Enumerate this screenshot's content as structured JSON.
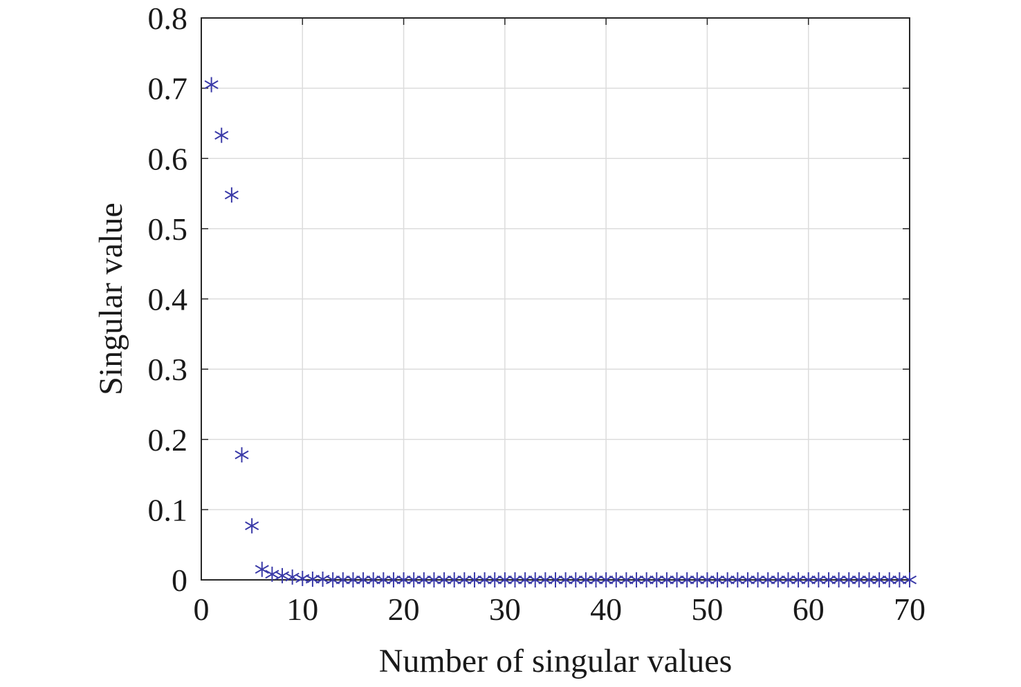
{
  "chart_data": {
    "type": "scatter",
    "title": "",
    "xlabel": "Number of singular values",
    "ylabel": "Singular value",
    "xlim": [
      0,
      70
    ],
    "ylim": [
      0,
      0.8
    ],
    "xticks": [
      0,
      10,
      20,
      30,
      40,
      50,
      60,
      70
    ],
    "xtick_labels": [
      "0",
      "10",
      "20",
      "30",
      "40",
      "50",
      "60",
      "70"
    ],
    "yticks": [
      0,
      0.1,
      0.2,
      0.3,
      0.4,
      0.5,
      0.6,
      0.7,
      0.8
    ],
    "ytick_labels": [
      "0",
      "0.1",
      "0.2",
      "0.3",
      "0.4",
      "0.5",
      "0.6",
      "0.7",
      "0.8"
    ],
    "grid": true,
    "marker": "asterisk",
    "colors": {
      "marker": "#3a3aa8",
      "axis": "#262626",
      "grid": "#dcdcdc"
    },
    "series": [
      {
        "x": [
          1,
          2,
          3,
          4,
          5,
          6,
          7,
          8,
          9,
          10,
          11,
          12,
          13,
          14,
          15,
          16,
          17,
          18,
          19,
          20,
          21,
          22,
          23,
          24,
          25,
          26,
          27,
          28,
          29,
          30,
          31,
          32,
          33,
          34,
          35,
          36,
          37,
          38,
          39,
          40,
          41,
          42,
          43,
          44,
          45,
          46,
          47,
          48,
          49,
          50,
          51,
          52,
          53,
          54,
          55,
          56,
          57,
          58,
          59,
          60,
          61,
          62,
          63,
          64,
          65,
          66,
          67,
          68,
          69,
          70
        ],
        "y": [
          0.705,
          0.633,
          0.548,
          0.178,
          0.077,
          0.015,
          0.008,
          0.006,
          0.004,
          0.002,
          0.001,
          0.001,
          0,
          0,
          0,
          0,
          0,
          0,
          0,
          0,
          0,
          0,
          0,
          0,
          0,
          0,
          0,
          0,
          0,
          0,
          0,
          0,
          0,
          0,
          0,
          0,
          0,
          0,
          0,
          0,
          0,
          0,
          0,
          0,
          0,
          0,
          0,
          0,
          0,
          0,
          0,
          0,
          0,
          0,
          0,
          0,
          0,
          0,
          0,
          0,
          0,
          0,
          0,
          0,
          0,
          0,
          0,
          0,
          0,
          0
        ]
      }
    ]
  }
}
